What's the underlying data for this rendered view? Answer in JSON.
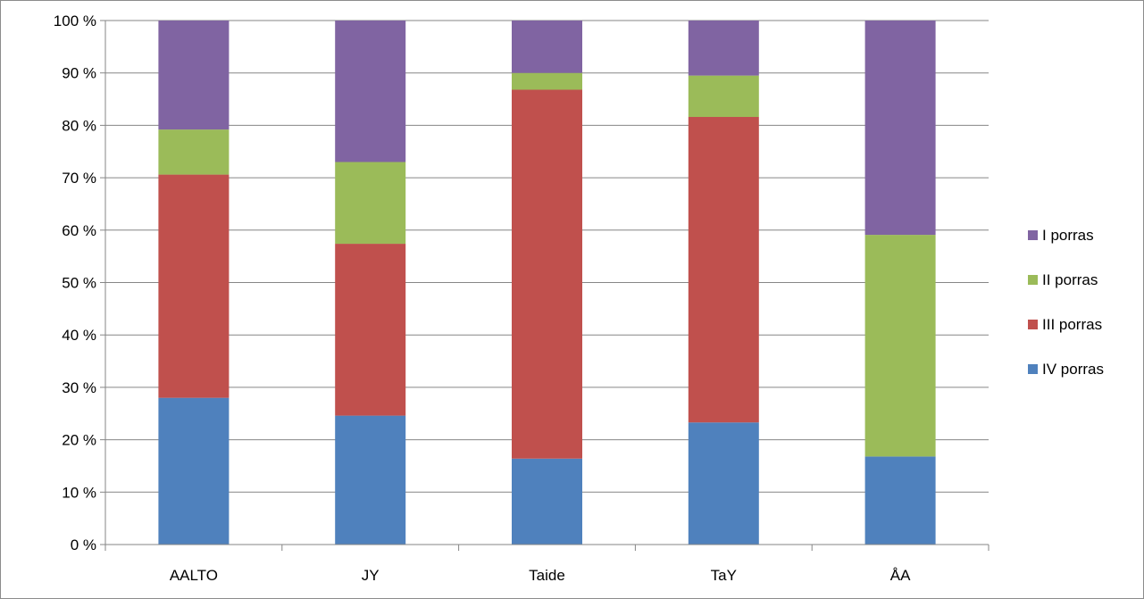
{
  "chart_data": {
    "type": "bar",
    "stacked": true,
    "percent": true,
    "categories": [
      "AALTO",
      "JY",
      "Taide",
      "TaY",
      "ÅA"
    ],
    "series": [
      {
        "name": "IV porras",
        "color": "#4F81BD",
        "values": [
          28.0,
          24.6,
          16.4,
          23.3,
          16.8
        ]
      },
      {
        "name": "III porras",
        "color": "#C0504D",
        "values": [
          42.6,
          32.8,
          70.4,
          58.3,
          0.0
        ]
      },
      {
        "name": "II porras",
        "color": "#9BBB59",
        "values": [
          8.6,
          15.6,
          3.2,
          7.9,
          42.3
        ]
      },
      {
        "name": "I porras",
        "color": "#8064A2",
        "values": [
          20.8,
          27.0,
          10.0,
          10.5,
          40.9
        ]
      }
    ],
    "ylim": [
      0,
      100
    ],
    "yticks": [
      "0 %",
      "10 %",
      "20 %",
      "30 %",
      "40 %",
      "50 %",
      "60 %",
      "70 %",
      "80 %",
      "90 %",
      "100 %"
    ],
    "legend_order": [
      "I porras",
      "II porras",
      "III porras",
      "IV porras"
    ],
    "legend_position": "right",
    "grid": true
  }
}
